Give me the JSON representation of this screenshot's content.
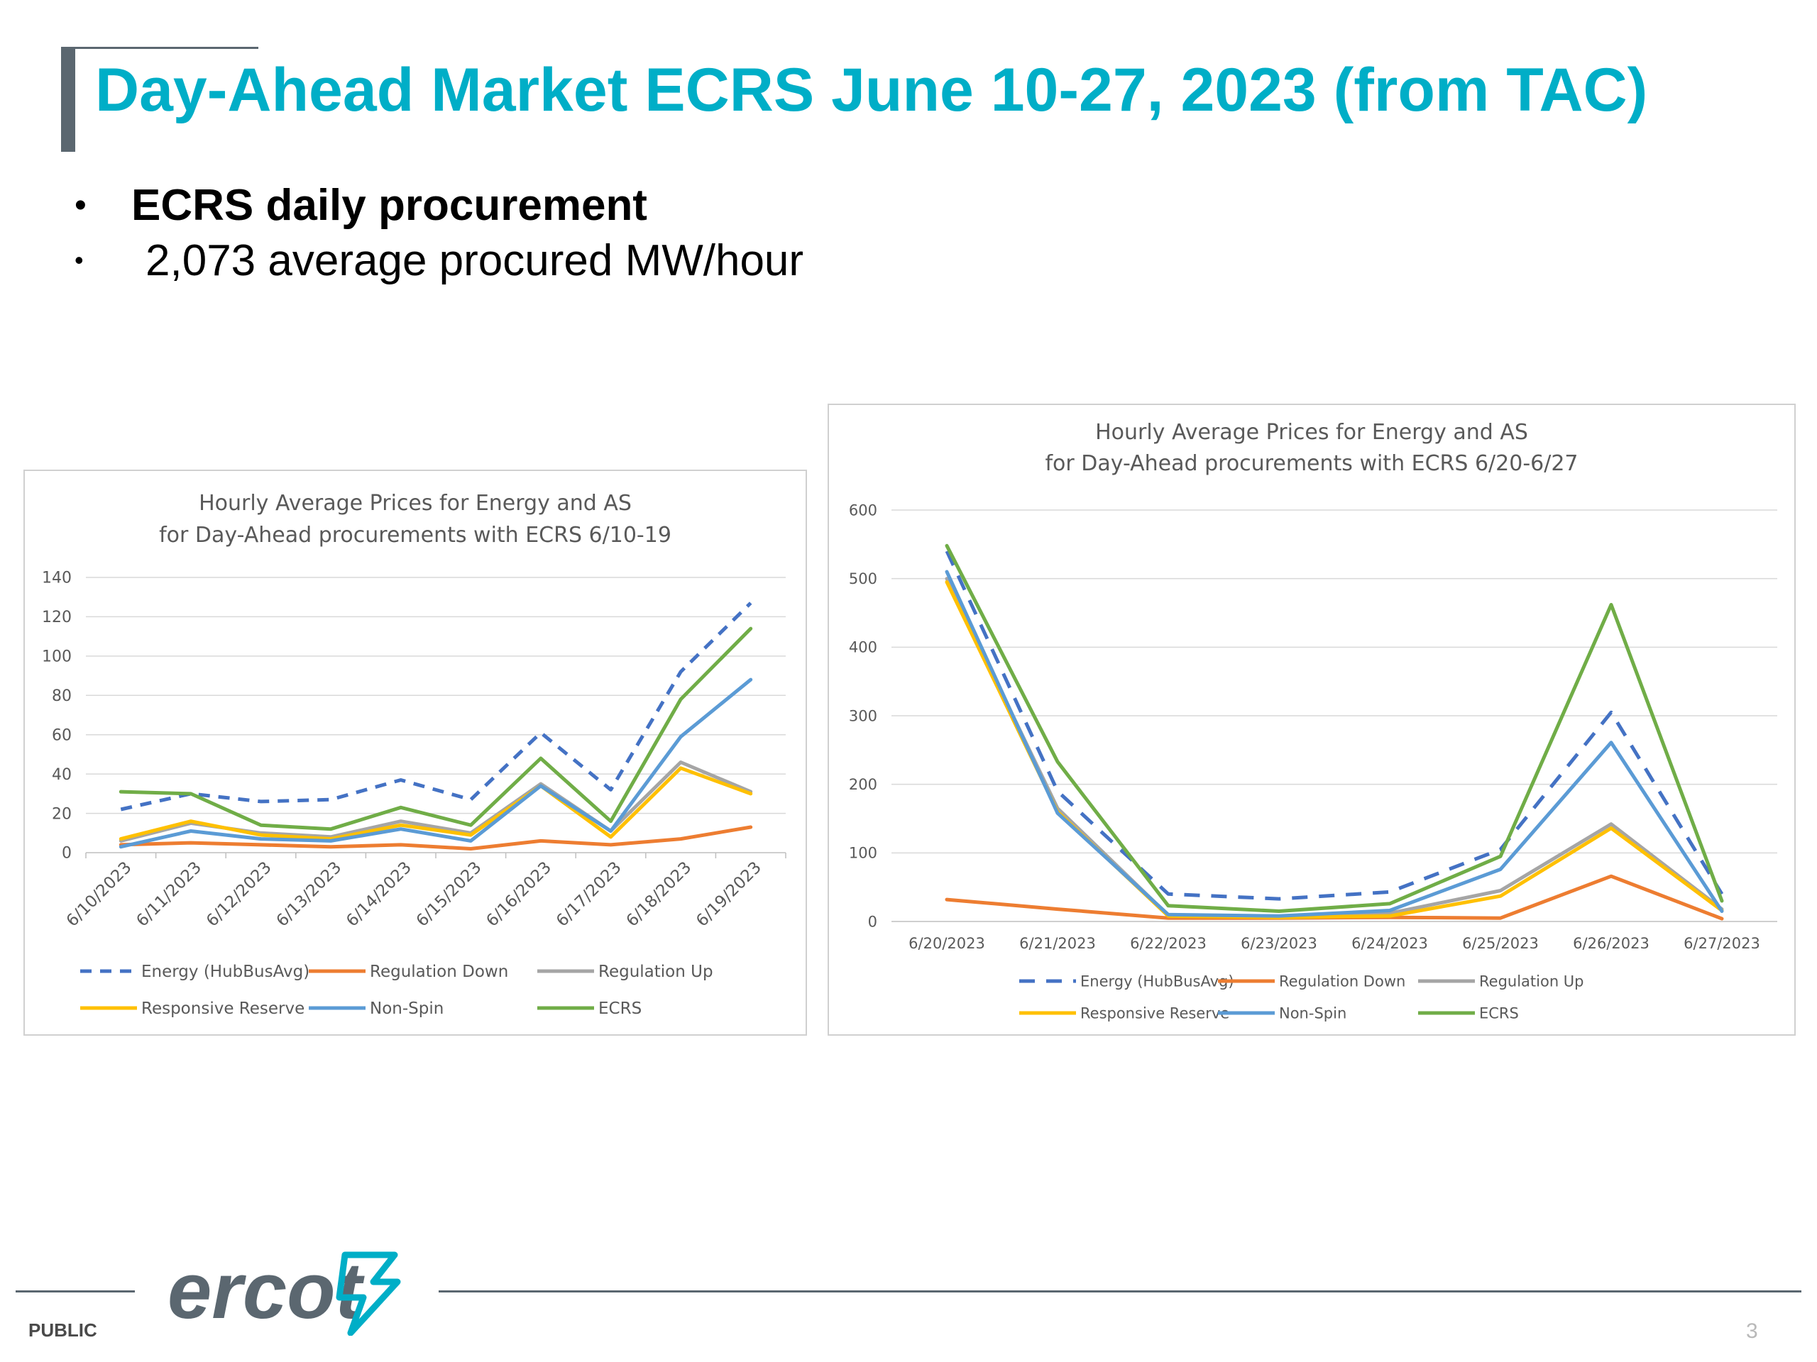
{
  "slide": {
    "title": "Day-Ahead Market ECRS June 10-27, 2023 (from TAC)",
    "bullets": [
      {
        "text": "ECRS daily procurement",
        "marker": "•"
      },
      {
        "text": "2,073 average procured MW/hour",
        "marker": "•"
      }
    ],
    "footer": {
      "label": "PUBLIC",
      "page": "3",
      "logo_text": "ercot"
    }
  },
  "colors": {
    "title": "#00aec7",
    "energy": "#4472c4",
    "regulation_down": "#ed7d31",
    "regulation_up": "#a5a5a5",
    "responsive_reserve": "#ffc000",
    "non_spin": "#5b9bd5",
    "ecrs": "#70ad47"
  },
  "chart_data": [
    {
      "type": "line",
      "title": "Hourly Average Prices for Energy and AS",
      "subtitle": "for Day-Ahead procurements with ECRS 6/10-19",
      "x": [
        "6/10/2023",
        "6/11/2023",
        "6/12/2023",
        "6/13/2023",
        "6/14/2023",
        "6/15/2023",
        "6/16/2023",
        "6/17/2023",
        "6/18/2023",
        "6/19/2023"
      ],
      "ylim": [
        0,
        140
      ],
      "yticks": [
        0,
        20,
        40,
        60,
        80,
        100,
        120,
        140
      ],
      "grid": true,
      "legend": "bottom",
      "series": [
        {
          "name": "Energy (HubBusAvg)",
          "style": "dashed",
          "values": [
            22,
            30,
            26,
            27,
            37,
            27,
            61,
            32,
            92,
            127
          ]
        },
        {
          "name": "Regulation Down",
          "style": "solid",
          "values": [
            4,
            5,
            4,
            3,
            4,
            2,
            6,
            4,
            7,
            13
          ]
        },
        {
          "name": "Regulation Up",
          "style": "solid",
          "values": [
            6,
            15,
            10,
            8,
            16,
            10,
            35,
            11,
            46,
            31
          ]
        },
        {
          "name": "Responsive Reserve",
          "style": "solid",
          "values": [
            7,
            16,
            9,
            7,
            14,
            9,
            34,
            8,
            43,
            30
          ]
        },
        {
          "name": "Non-Spin",
          "style": "solid",
          "values": [
            3,
            11,
            7,
            6,
            12,
            6,
            34,
            11,
            59,
            88
          ]
        },
        {
          "name": "ECRS",
          "style": "solid",
          "values": [
            31,
            30,
            14,
            12,
            23,
            14,
            48,
            16,
            78,
            114
          ]
        }
      ]
    },
    {
      "type": "line",
      "title": "Hourly Average Prices for Energy and AS",
      "subtitle": "for Day-Ahead procurements with ECRS 6/20-6/27",
      "x": [
        "6/20/2023",
        "6/21/2023",
        "6/22/2023",
        "6/23/2023",
        "6/24/2023",
        "6/25/2023",
        "6/26/2023",
        "6/27/2023"
      ],
      "ylim": [
        0,
        600
      ],
      "yticks": [
        0,
        100,
        200,
        300,
        400,
        500,
        600
      ],
      "grid": true,
      "legend": "bottom",
      "series": [
        {
          "name": "Energy (HubBusAvg)",
          "style": "dashed",
          "values": [
            540,
            190,
            40,
            33,
            43,
            105,
            305,
            40
          ]
        },
        {
          "name": "Regulation Down",
          "style": "solid",
          "values": [
            32,
            18,
            5,
            5,
            6,
            5,
            66,
            4
          ]
        },
        {
          "name": "Regulation Up",
          "style": "solid",
          "values": [
            500,
            165,
            9,
            7,
            12,
            45,
            142,
            18
          ]
        },
        {
          "name": "Responsive Reserve",
          "style": "solid",
          "values": [
            495,
            160,
            8,
            6,
            8,
            37,
            136,
            16
          ]
        },
        {
          "name": "Non-Spin",
          "style": "solid",
          "values": [
            510,
            158,
            10,
            8,
            16,
            76,
            261,
            15
          ]
        },
        {
          "name": "ECRS",
          "style": "solid",
          "values": [
            548,
            233,
            23,
            15,
            26,
            95,
            462,
            30
          ]
        }
      ]
    }
  ]
}
